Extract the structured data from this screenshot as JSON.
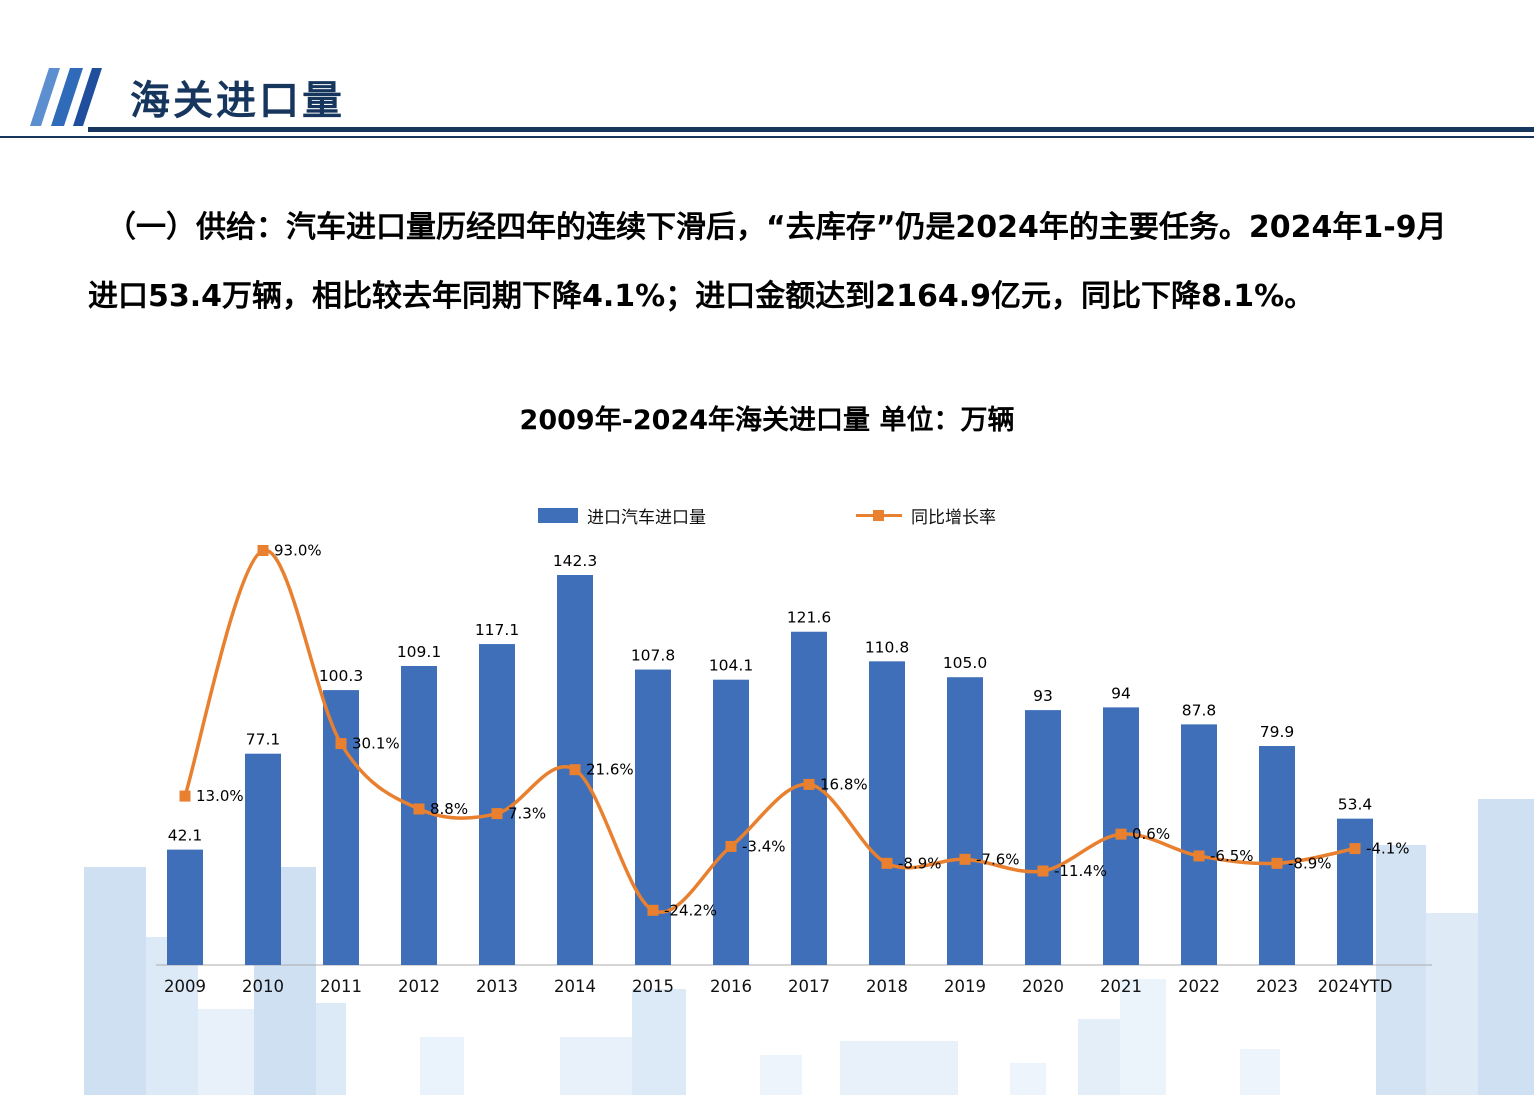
{
  "header": {
    "title": "海关进口量"
  },
  "colors": {
    "header_navy": "#17365D",
    "bar_blue": "#3E6FB8",
    "line_orange": "#E8802F"
  },
  "paragraph": {
    "text": "（一）供给：汽车进口量历经四年的连续下滑后，“去库存”仍是2024年的主要任务。2024年1-9月进口53.4万辆，相比较去年同期下降4.1%；进口金额达到2164.9亿元，同比下降8.1%。"
  },
  "chart_data": {
    "type": "combo_bar_line",
    "title": "2009年-2024年海关进口量  单位：万辆",
    "legend_position": "top",
    "grid": "off",
    "y_axis_labels_visible": false,
    "categories": [
      "2009",
      "2010",
      "2011",
      "2012",
      "2013",
      "2014",
      "2015",
      "2016",
      "2017",
      "2018",
      "2019",
      "2020",
      "2021",
      "2022",
      "2023",
      "2024YTD"
    ],
    "series": [
      {
        "name": "进口汽车进口量",
        "type": "bar",
        "color": "#3E6FB8",
        "values": [
          42.1,
          77.1,
          100.3,
          109.1,
          117.1,
          142.3,
          107.8,
          104.1,
          121.6,
          110.8,
          105.0,
          93,
          94,
          87.8,
          79.9,
          53.4
        ],
        "labels": [
          "42.1",
          "77.1",
          "100.3",
          "109.1",
          "117.1",
          "142.3",
          "107.8",
          "104.1",
          "121.6",
          "110.8",
          "105.0",
          "93",
          "94",
          "87.8",
          "79.9",
          "53.4"
        ]
      },
      {
        "name": "同比增长率",
        "type": "line",
        "color": "#E8802F",
        "values": [
          13.0,
          93.0,
          30.1,
          8.8,
          7.3,
          21.6,
          -24.2,
          -3.4,
          16.8,
          -8.9,
          -7.6,
          -11.4,
          0.6,
          -6.5,
          -8.9,
          -4.1
        ],
        "labels": [
          "13.0%",
          "93.0%",
          "30.1%",
          "8.8%",
          "7.3%",
          "21.6%",
          "-24.2%",
          "-3.4%",
          "16.8%",
          "-8.9%",
          "-7.6%",
          "-11.4%",
          "0.6%",
          "-6.5%",
          "-8.9%",
          "-4.1%"
        ]
      }
    ]
  }
}
